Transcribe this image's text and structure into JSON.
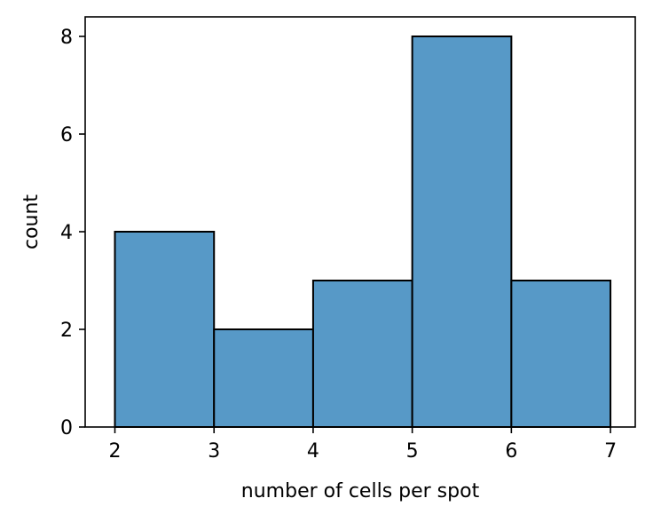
{
  "chart_data": {
    "type": "bar",
    "bins": [
      {
        "start": 2,
        "end": 3,
        "count": 4
      },
      {
        "start": 3,
        "end": 4,
        "count": 2
      },
      {
        "start": 4,
        "end": 5,
        "count": 3
      },
      {
        "start": 5,
        "end": 6,
        "count": 8
      },
      {
        "start": 6,
        "end": 7,
        "count": 3
      }
    ],
    "xlabel": "number of cells per spot",
    "ylabel": "count",
    "xlim": [
      1.7,
      7.25
    ],
    "ylim": [
      0,
      8.4
    ],
    "xticks": [
      "2",
      "3",
      "4",
      "5",
      "6",
      "7"
    ],
    "yticks": [
      "0",
      "2",
      "4",
      "6",
      "8"
    ],
    "bar_color": "#5799c7",
    "edge_color": "#000000",
    "grid": false,
    "legend": "none"
  }
}
